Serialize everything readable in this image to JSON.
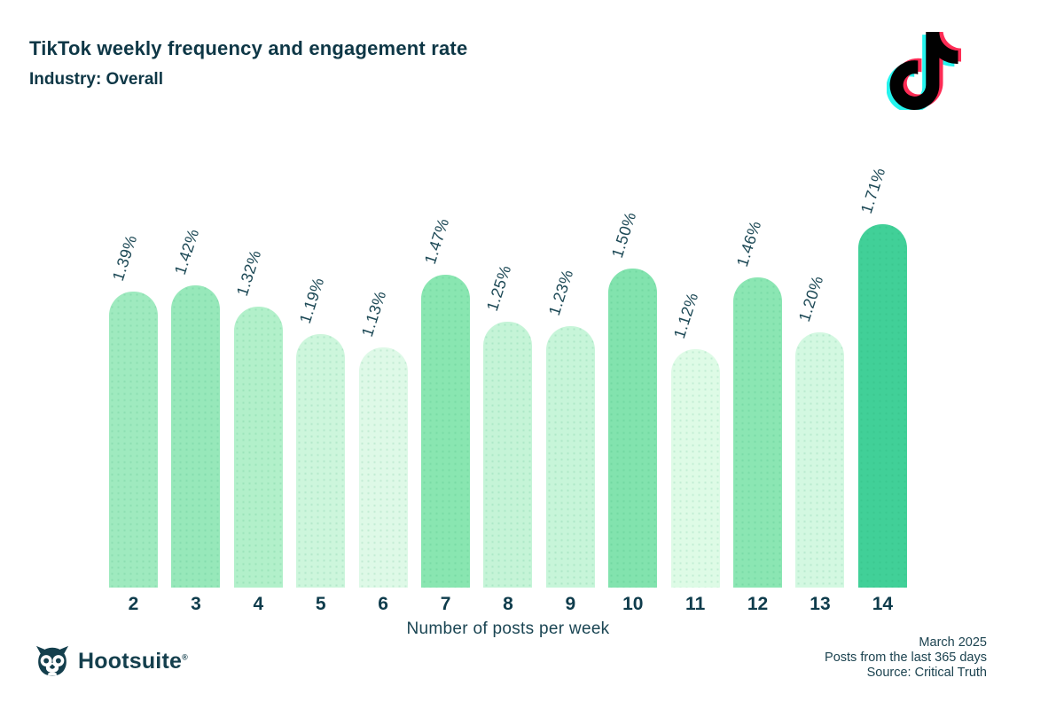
{
  "header": {
    "title": "TikTok weekly frequency and engagement rate",
    "subtitle": "Industry: Overall"
  },
  "chart_data": {
    "type": "bar",
    "categories": [
      "2",
      "3",
      "4",
      "5",
      "6",
      "7",
      "8",
      "9",
      "10",
      "11",
      "12",
      "13",
      "14"
    ],
    "values": [
      1.39,
      1.42,
      1.32,
      1.19,
      1.13,
      1.47,
      1.25,
      1.23,
      1.5,
      1.12,
      1.46,
      1.2,
      1.71
    ],
    "value_labels": [
      "1.39%",
      "1.42%",
      "1.32%",
      "1.19%",
      "1.13%",
      "1.47%",
      "1.25%",
      "1.23%",
      "1.50%",
      "1.12%",
      "1.46%",
      "1.20%",
      "1.71%"
    ],
    "bar_colors": [
      "#9feabf",
      "#97e8ba",
      "#b2f0ca",
      "#cdf6dc",
      "#def9e7",
      "#89e6b1",
      "#c5f4d7",
      "#c7f5d9",
      "#82e3ae",
      "#defbe6",
      "#8be6b3",
      "#d3f8e1",
      "#41d098"
    ],
    "title": "TikTok weekly frequency and engagement rate",
    "xlabel": "Number of posts per week",
    "ylabel": "",
    "ylim": [
      0,
      2.0
    ],
    "grid": false,
    "legend": "none"
  },
  "footer": {
    "lines": [
      "March 2025",
      "Posts from the last 365 days",
      "Source: Critical Truth"
    ],
    "brand": "Hootsuite",
    "brand_reg": "®"
  },
  "colors": {
    "text_dark": "#0e3746",
    "bar_max": "#41d098",
    "bar_min": "#defbe6",
    "tiktok_cyan": "#25f4ee",
    "tiktok_pink": "#fe2c55",
    "tiktok_black": "#010101",
    "hootsuite_teal": "#143f4d",
    "background": "#ffffff"
  }
}
